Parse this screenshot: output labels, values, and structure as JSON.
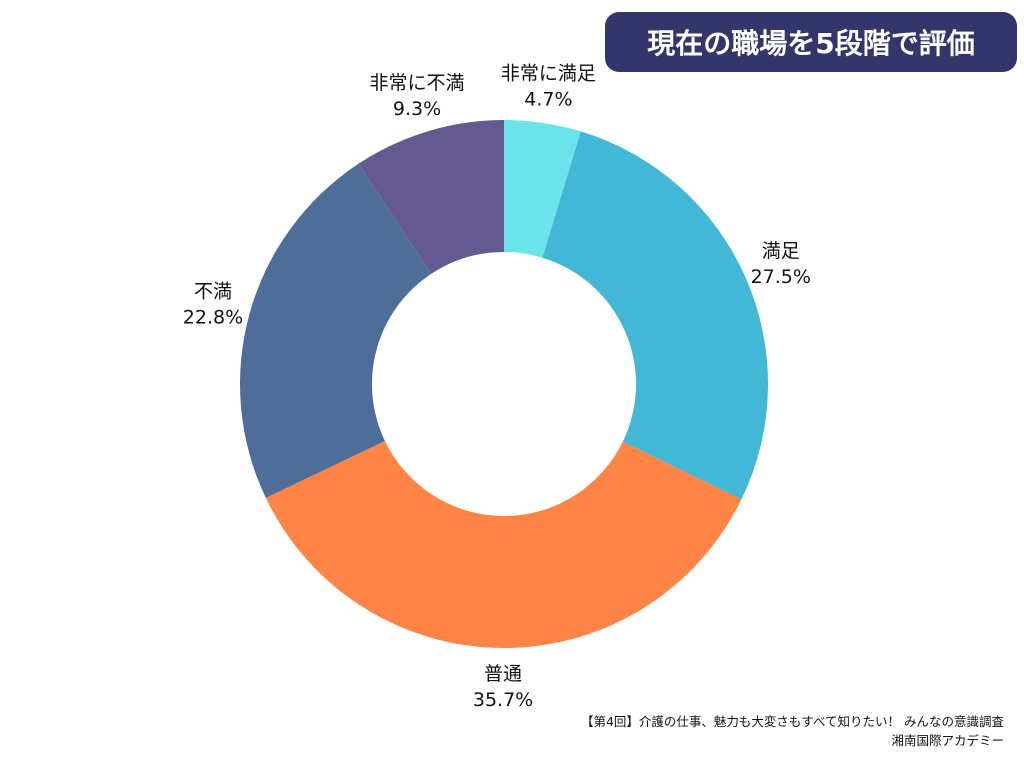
{
  "chart_data": {
    "type": "pie",
    "donut": true,
    "title": "現在の職場を5段階で評価",
    "start": "top",
    "direction": "clockwise",
    "slices": [
      {
        "label": "非常に満足",
        "value": 4.7,
        "value_label": "4.7%",
        "color": "#6be4e9"
      },
      {
        "label": "満足",
        "value": 27.5,
        "value_label": "27.5%",
        "color": "#42b7d6"
      },
      {
        "label": "普通",
        "value": 35.7,
        "value_label": "35.7%",
        "color": "#ff8446"
      },
      {
        "label": "不満",
        "value": 22.8,
        "value_label": "22.8%",
        "color": "#4e6d99"
      },
      {
        "label": "非常に不満",
        "value": 9.3,
        "value_label": "9.3%",
        "color": "#655a90"
      }
    ],
    "title_background": "#32366b"
  },
  "footer": {
    "line1": "【第4回】介護の仕事、魅力も大変さもすべて知りたい！ みんなの意識調査",
    "line2": "湘南国際アカデミー"
  }
}
